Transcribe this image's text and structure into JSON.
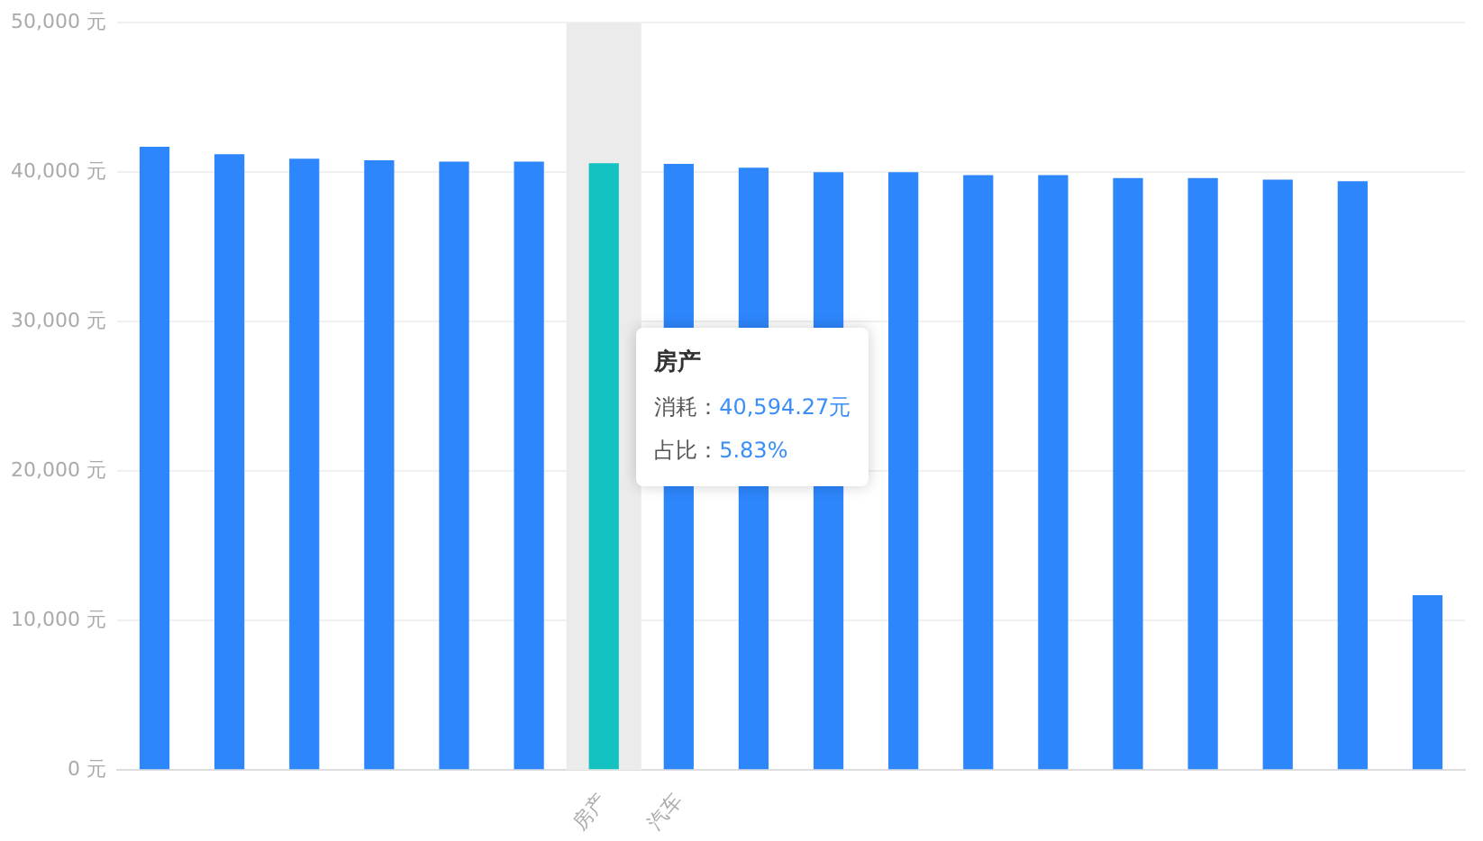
{
  "chart_data": {
    "type": "bar",
    "categories": [
      null,
      null,
      null,
      null,
      null,
      null,
      "房产",
      "汽车",
      null,
      null,
      null,
      null,
      null,
      null,
      null,
      null,
      null,
      null
    ],
    "values": [
      41700,
      41200,
      40900,
      40800,
      40700,
      40700,
      40594.27,
      40550,
      40300,
      40000,
      40000,
      39800,
      39800,
      39600,
      39600,
      39500,
      39400,
      11700
    ],
    "colors": [
      "#2d86fb",
      "#2d86fb",
      "#2d86fb",
      "#2d86fb",
      "#2d86fb",
      "#2d86fb",
      "#14c2c2",
      "#2d86fb",
      "#2d86fb",
      "#2d86fb",
      "#2d86fb",
      "#2d86fb",
      "#2d86fb",
      "#2d86fb",
      "#2d86fb",
      "#2d86fb",
      "#2d86fb",
      "#2d86fb"
    ],
    "ylim": [
      0,
      50000
    ],
    "yticks": [
      {
        "value": 0,
        "label": "0 元"
      },
      {
        "value": 10000,
        "label": "10,000 元"
      },
      {
        "value": 20000,
        "label": "20,000 元"
      },
      {
        "value": 30000,
        "label": "30,000 元"
      },
      {
        "value": 40000,
        "label": "40,000 元"
      },
      {
        "value": 50000,
        "label": "50,000 元"
      }
    ],
    "grid": "y",
    "bands": [
      {
        "axis": "x",
        "from": "房产",
        "to": "房产",
        "color": "#ebebeb"
      }
    ],
    "annotations": [
      "房产",
      "消耗：40,594.27元",
      "占比：5.83%"
    ]
  }
}
